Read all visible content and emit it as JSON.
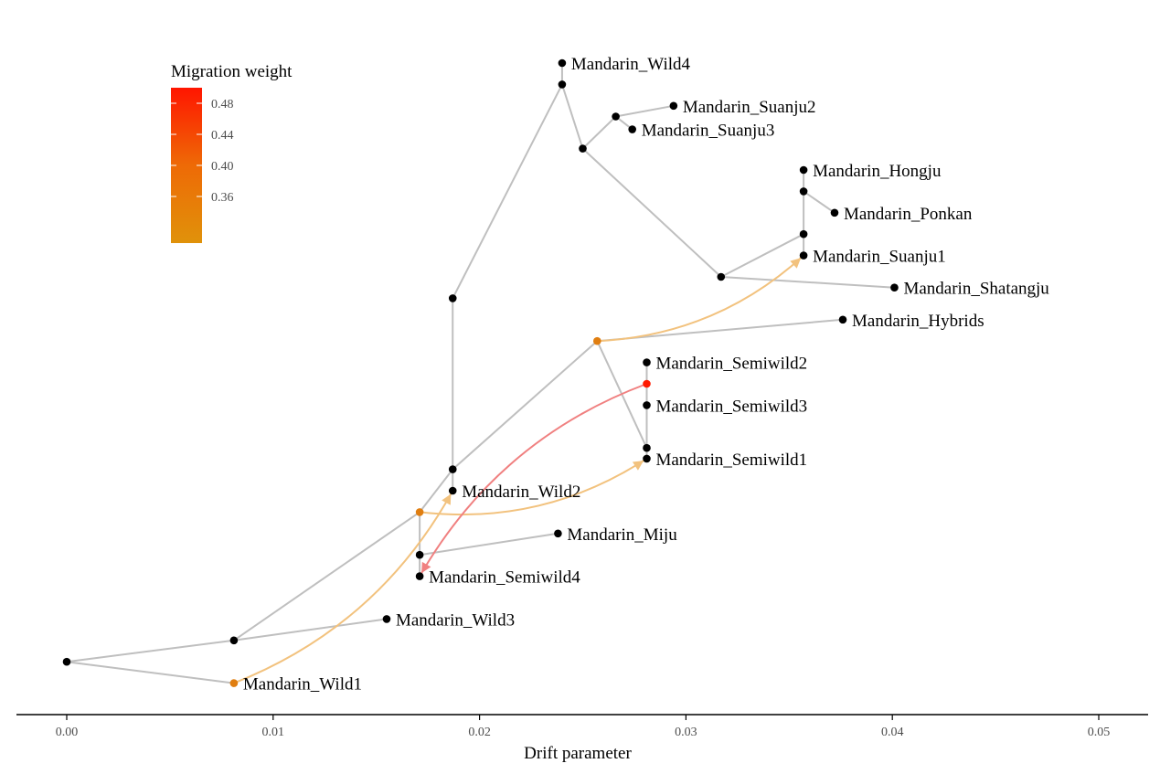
{
  "chart_data": {
    "type": "tree",
    "xlabel": "Drift parameter",
    "xlim": [
      0,
      0.052
    ],
    "x_ticks": [
      0.0,
      0.01,
      0.02,
      0.03,
      0.04,
      0.05
    ],
    "x_tick_labels": [
      "0.00",
      "0.01",
      "0.02",
      "0.03",
      "0.04",
      "0.05"
    ],
    "legend": {
      "title": "Migration weight",
      "placement": "top-left",
      "range": [
        0.3,
        0.5
      ],
      "ticks": [
        0.36,
        0.4,
        0.44,
        0.48
      ],
      "tick_labels": [
        "0.36",
        "0.40",
        "0.44",
        "0.48"
      ],
      "low_color": "#E0920A",
      "mid_color": "#EE6A06",
      "high_color": "#FF1500"
    },
    "colors": {
      "edge": "#bfbfbf",
      "node": "#000000",
      "axis": "#000000",
      "migration_orange": "#E07E10",
      "migration_red": "#FF1A00",
      "arrow_light": "#F2C27E",
      "arrow_red": "#F08080"
    },
    "nodes": [
      {
        "id": "root",
        "x": 0.0,
        "y": 2
      },
      {
        "id": "n1",
        "x": 0.0081,
        "y": 3
      },
      {
        "id": "wild1",
        "x": 0.0081,
        "y": 1,
        "label": "Mandarin_Wild1",
        "color": "orange"
      },
      {
        "id": "wild3",
        "x": 0.0155,
        "y": 4,
        "label": "Mandarin_Wild3"
      },
      {
        "id": "n2",
        "x": 0.0171,
        "y": 9,
        "color": "orange"
      },
      {
        "id": "n3",
        "x": 0.0171,
        "y": 7
      },
      {
        "id": "semiwild4",
        "x": 0.0171,
        "y": 6,
        "label": "Mandarin_Semiwild4"
      },
      {
        "id": "miju",
        "x": 0.0238,
        "y": 8,
        "label": "Mandarin_Miju"
      },
      {
        "id": "wild2",
        "x": 0.0187,
        "y": 10,
        "label": "Mandarin_Wild2"
      },
      {
        "id": "n4",
        "x": 0.0187,
        "y": 11
      },
      {
        "id": "n5",
        "x": 0.0187,
        "y": 19
      },
      {
        "id": "n6",
        "x": 0.0257,
        "y": 17,
        "color": "orange"
      },
      {
        "id": "hybrids",
        "x": 0.0376,
        "y": 18,
        "label": "Mandarin_Hybrids"
      },
      {
        "id": "n7",
        "x": 0.0281,
        "y": 12
      },
      {
        "id": "semiwild1",
        "x": 0.0281,
        "y": 11.5,
        "label": "Mandarin_Semiwild1"
      },
      {
        "id": "semiwild3",
        "x": 0.0281,
        "y": 14,
        "label": "Mandarin_Semiwild3"
      },
      {
        "id": "n8",
        "x": 0.0281,
        "y": 15,
        "color": "red"
      },
      {
        "id": "semiwild2",
        "x": 0.0281,
        "y": 16,
        "label": "Mandarin_Semiwild2"
      },
      {
        "id": "n9",
        "x": 0.024,
        "y": 29
      },
      {
        "id": "wild4",
        "x": 0.024,
        "y": 30,
        "label": "Mandarin_Wild4"
      },
      {
        "id": "n10",
        "x": 0.025,
        "y": 26
      },
      {
        "id": "n11",
        "x": 0.0266,
        "y": 27.5
      },
      {
        "id": "suanju2",
        "x": 0.0294,
        "y": 28,
        "label": "Mandarin_Suanju2"
      },
      {
        "id": "suanju3",
        "x": 0.0274,
        "y": 26.9,
        "label": "Mandarin_Suanju3"
      },
      {
        "id": "n12",
        "x": 0.0317,
        "y": 20
      },
      {
        "id": "shatangju",
        "x": 0.0401,
        "y": 19.5,
        "label": "Mandarin_Shatangju"
      },
      {
        "id": "n13",
        "x": 0.0357,
        "y": 22
      },
      {
        "id": "suanju1",
        "x": 0.0357,
        "y": 21,
        "label": "Mandarin_Suanju1"
      },
      {
        "id": "n14",
        "x": 0.0357,
        "y": 24
      },
      {
        "id": "hongju",
        "x": 0.0357,
        "y": 25,
        "label": "Mandarin_Hongju"
      },
      {
        "id": "ponkan",
        "x": 0.0372,
        "y": 23,
        "label": "Mandarin_Ponkan"
      }
    ],
    "edges": [
      [
        "root",
        "n1"
      ],
      [
        "root",
        "wild1"
      ],
      [
        "n1",
        "wild3"
      ],
      [
        "n1",
        "n2"
      ],
      [
        "n2",
        "n3"
      ],
      [
        "n3",
        "semiwild4"
      ],
      [
        "n3",
        "miju"
      ],
      [
        "n2",
        "n4"
      ],
      [
        "n4",
        "wild2"
      ],
      [
        "n4",
        "n5"
      ],
      [
        "n4",
        "n6"
      ],
      [
        "n6",
        "hybrids"
      ],
      [
        "n6",
        "n7"
      ],
      [
        "n7",
        "semiwild1"
      ],
      [
        "n7",
        "semiwild3"
      ],
      [
        "semiwild3",
        "n8"
      ],
      [
        "n8",
        "semiwild2"
      ],
      [
        "n5",
        "n9"
      ],
      [
        "n9",
        "wild4"
      ],
      [
        "n9",
        "n10"
      ],
      [
        "n10",
        "n11"
      ],
      [
        "n11",
        "suanju2"
      ],
      [
        "n11",
        "suanju3"
      ],
      [
        "n10",
        "n12"
      ],
      [
        "n12",
        "shatangju"
      ],
      [
        "n12",
        "n13"
      ],
      [
        "n13",
        "suanju1"
      ],
      [
        "n13",
        "n14"
      ],
      [
        "n14",
        "hongju"
      ],
      [
        "n14",
        "ponkan"
      ]
    ],
    "migrations": [
      {
        "from": "wild1",
        "to": "wild2",
        "weight": 0.34
      },
      {
        "from": "n2",
        "to": "semiwild1",
        "weight": 0.34
      },
      {
        "from": "n6",
        "to": "suanju1",
        "weight": 0.34
      },
      {
        "from": "n8",
        "to": "semiwild4",
        "weight": 0.5
      }
    ]
  }
}
